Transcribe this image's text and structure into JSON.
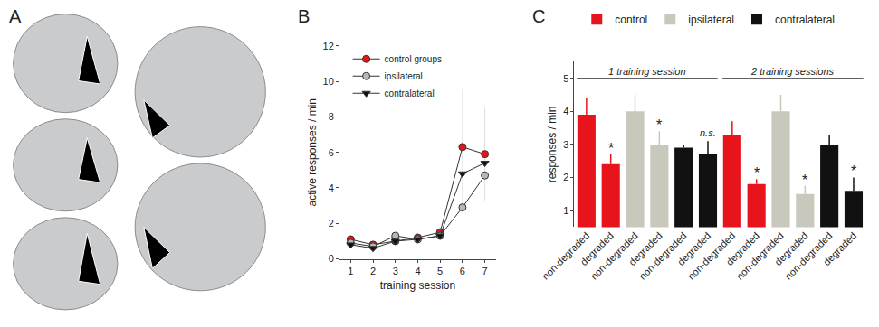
{
  "panel_a": {
    "label": "A"
  },
  "chart_data": [
    {
      "label": "B",
      "type": "line",
      "x": [
        1,
        2,
        3,
        4,
        5,
        6,
        7
      ],
      "xlabel": "training session",
      "ylabel": "active responses / min",
      "xlim": [
        0.5,
        7.5
      ],
      "xticks": [
        1,
        2,
        3,
        4,
        5,
        6,
        7
      ],
      "ylim": [
        0,
        12
      ],
      "yticks": [
        0,
        2,
        4,
        6,
        8,
        10,
        12
      ],
      "legend": "upper left",
      "series": [
        {
          "name": "control groups",
          "color": "#e8141b",
          "marker": "circle",
          "values": [
            1.1,
            0.8,
            1.0,
            1.2,
            1.5,
            6.3,
            5.9
          ],
          "errors": [
            0.2,
            0.2,
            0.1,
            0.2,
            0.3,
            3.3,
            2.6
          ]
        },
        {
          "name": "ipsilateral",
          "color": "#b8b8b0",
          "marker": "circle",
          "values": [
            0.9,
            0.7,
            1.3,
            1.1,
            1.3,
            2.9,
            4.7
          ]
        },
        {
          "name": "contralateral",
          "color": "#111111",
          "marker": "triangle-down",
          "values": [
            0.8,
            0.6,
            1.0,
            1.1,
            1.3,
            4.8,
            5.4
          ]
        }
      ]
    },
    {
      "label": "C",
      "type": "bar",
      "categories": [
        "non-degraded",
        "degraded",
        "non-degraded",
        "degraded",
        "non-degraded",
        "degraded",
        "non-degraded",
        "degraded",
        "non-degraded",
        "degraded",
        "non-degraded",
        "degraded"
      ],
      "ylabel": "responses / min",
      "ylim": [
        0.5,
        5.5
      ],
      "yticks": [
        1,
        2,
        3,
        4,
        5
      ],
      "legend": "top",
      "series": [
        {
          "name": "control",
          "color": "#e8141b",
          "values": [
            3.9,
            2.4,
            null,
            null,
            null,
            null,
            3.3,
            1.8,
            null,
            null,
            null,
            null
          ],
          "errors": [
            0.5,
            0.3,
            null,
            null,
            null,
            null,
            0.4,
            0.15,
            null,
            null,
            null,
            null
          ]
        },
        {
          "name": "ipsilateral",
          "color": "#c8c8bc",
          "values": [
            null,
            null,
            4.0,
            3.0,
            null,
            null,
            null,
            null,
            4.0,
            1.5,
            null,
            null
          ],
          "errors": [
            null,
            null,
            0.5,
            0.4,
            null,
            null,
            null,
            null,
            0.5,
            0.25,
            null,
            null
          ]
        },
        {
          "name": "contralateral",
          "color": "#111111",
          "values": [
            null,
            null,
            null,
            null,
            2.9,
            2.7,
            null,
            null,
            null,
            null,
            3.0,
            1.6
          ],
          "errors": [
            null,
            null,
            null,
            null,
            0.1,
            0.4,
            null,
            null,
            null,
            null,
            0.3,
            0.4
          ]
        }
      ],
      "groups": [
        {
          "label": "1 training session",
          "first": 0,
          "last": 5
        },
        {
          "label": "2 training sessions",
          "first": 6,
          "last": 11
        }
      ],
      "annotations": [
        {
          "x": 1,
          "text": "*"
        },
        {
          "x": 3,
          "text": "*"
        },
        {
          "x": 5,
          "text": "n.s."
        },
        {
          "x": 7,
          "text": "*"
        },
        {
          "x": 9,
          "text": "*"
        },
        {
          "x": 11,
          "text": "*"
        }
      ]
    }
  ]
}
